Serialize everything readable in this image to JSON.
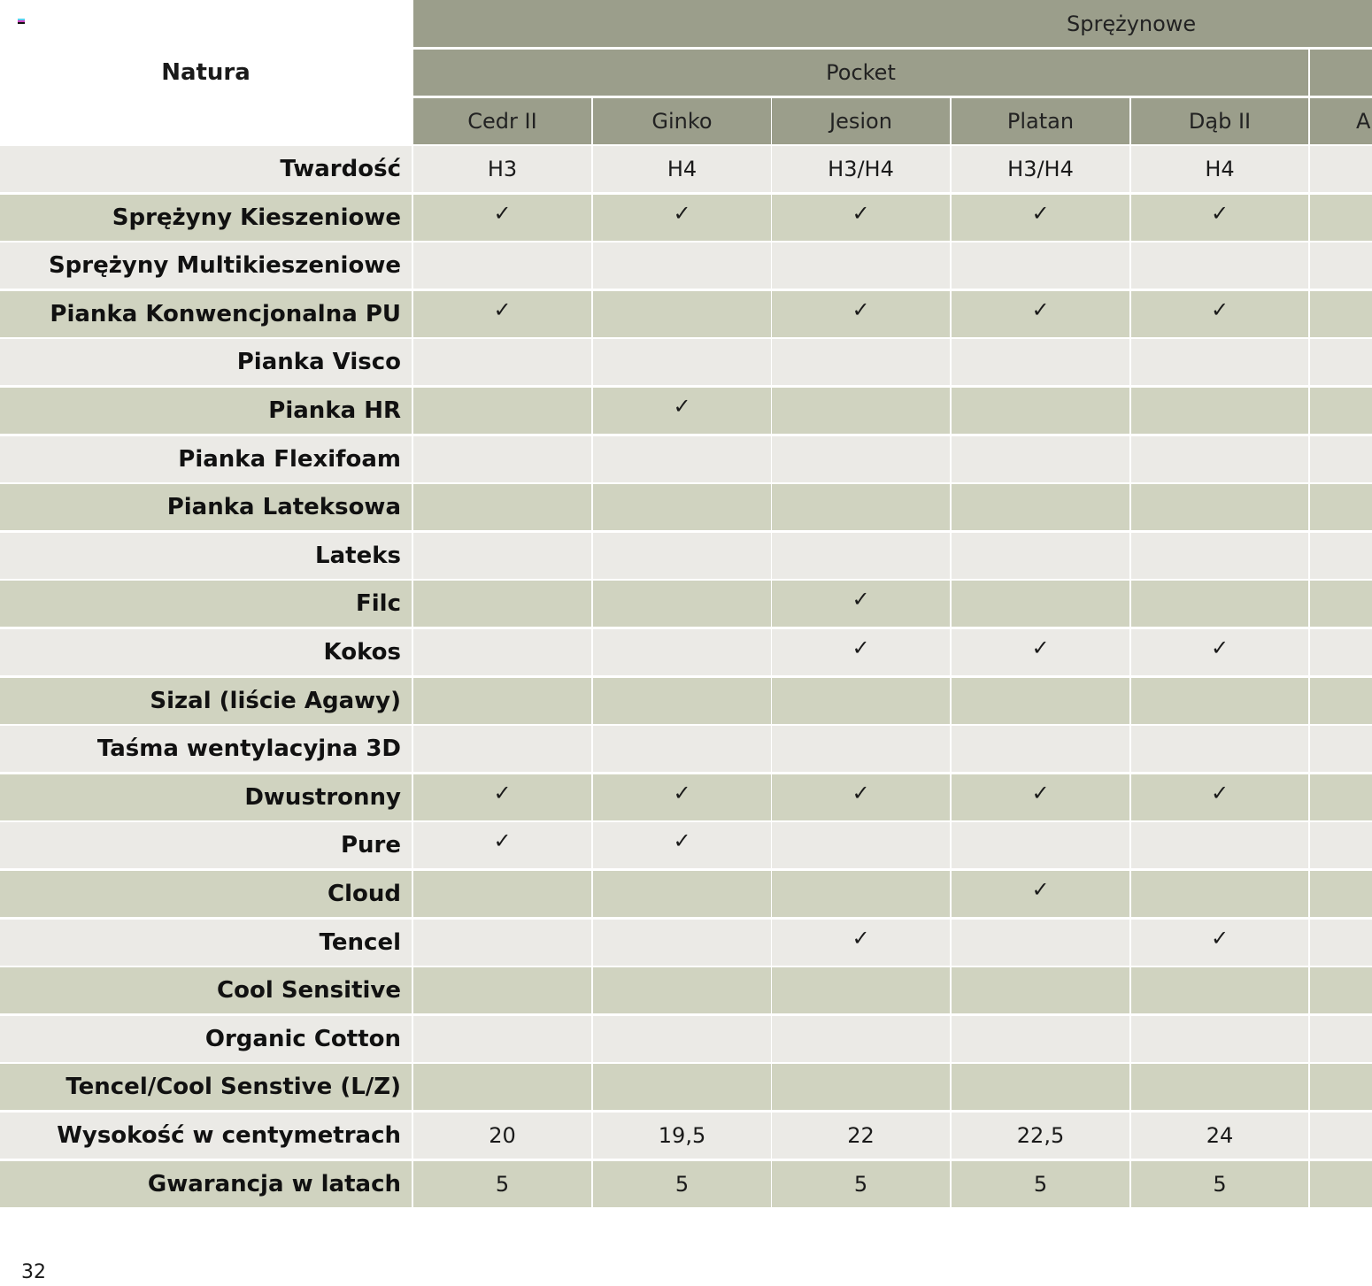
{
  "table": {
    "title": "Natura",
    "group_header": "Sprężynowe",
    "subgroup_header": "Pocket",
    "columns": [
      "Cedr II",
      "Ginko",
      "Jesion",
      "Platan",
      "Dąb II",
      "A"
    ],
    "rows": [
      {
        "label": "Twardość",
        "values": [
          "H3",
          "H4",
          "H3/H4",
          "H3/H4",
          "H4",
          ""
        ]
      },
      {
        "label": "Sprężyny Kieszeniowe",
        "values": [
          "✓",
          "✓",
          "✓",
          "✓",
          "✓",
          ""
        ]
      },
      {
        "label": "Sprężyny Multikieszeniowe",
        "values": [
          "",
          "",
          "",
          "",
          "",
          ""
        ]
      },
      {
        "label": "Pianka Konwencjonalna PU",
        "values": [
          "✓",
          "",
          "✓",
          "✓",
          "✓",
          ""
        ]
      },
      {
        "label": "Pianka Visco",
        "values": [
          "",
          "",
          "",
          "",
          "",
          ""
        ]
      },
      {
        "label": "Pianka HR",
        "values": [
          "",
          "✓",
          "",
          "",
          "",
          ""
        ]
      },
      {
        "label": "Pianka Flexifoam",
        "values": [
          "",
          "",
          "",
          "",
          "",
          ""
        ]
      },
      {
        "label": "Pianka Lateksowa",
        "values": [
          "",
          "",
          "",
          "",
          "",
          ""
        ]
      },
      {
        "label": "Lateks",
        "values": [
          "",
          "",
          "",
          "",
          "",
          ""
        ]
      },
      {
        "label": "Filc",
        "values": [
          "",
          "",
          "✓",
          "",
          "",
          ""
        ]
      },
      {
        "label": "Kokos",
        "values": [
          "",
          "",
          "✓",
          "✓",
          "✓",
          ""
        ]
      },
      {
        "label": "Sizal (liście Agawy)",
        "values": [
          "",
          "",
          "",
          "",
          "",
          ""
        ]
      },
      {
        "label": "Taśma wentylacyjna 3D",
        "values": [
          "",
          "",
          "",
          "",
          "",
          ""
        ]
      },
      {
        "label": "Dwustronny",
        "values": [
          "✓",
          "✓",
          "✓",
          "✓",
          "✓",
          ""
        ]
      },
      {
        "label": "Pure",
        "values": [
          "✓",
          "✓",
          "",
          "",
          "",
          ""
        ]
      },
      {
        "label": "Cloud",
        "values": [
          "",
          "",
          "",
          "✓",
          "",
          ""
        ]
      },
      {
        "label": "Tencel",
        "values": [
          "",
          "",
          "✓",
          "",
          "✓",
          ""
        ]
      },
      {
        "label": "Cool Sensitive",
        "values": [
          "",
          "",
          "",
          "",
          "",
          ""
        ]
      },
      {
        "label": "Organic Cotton",
        "values": [
          "",
          "",
          "",
          "",
          "",
          ""
        ]
      },
      {
        "label": "Tencel/Cool Senstive (L/Z)",
        "values": [
          "",
          "",
          "",
          "",
          "",
          ""
        ]
      },
      {
        "label": "Wysokość w centymetrach",
        "values": [
          "20",
          "19,5",
          "22",
          "22,5",
          "24",
          ""
        ]
      },
      {
        "label": "Gwarancja w latach",
        "values": [
          "5",
          "5",
          "5",
          "5",
          "5",
          ""
        ]
      }
    ]
  },
  "page_number": "32",
  "colors": {
    "header": "#9b9e8b",
    "row_light": "#ebeae6",
    "row_green": "#d0d3c0"
  }
}
